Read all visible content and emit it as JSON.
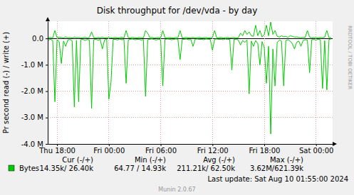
{
  "chart_data": {
    "type": "line",
    "title": "Disk throughput for /dev/vda - by day",
    "y_label": "Pr second read (-) / write (+)",
    "grid": true,
    "legend": "bottom-left",
    "xlim": [
      16.92,
      49.92
    ],
    "xticks": [
      {
        "value": 18,
        "label": "Thu 18:00"
      },
      {
        "value": 24,
        "label": "Fri 00:00"
      },
      {
        "value": 30,
        "label": "Fri 06:00"
      },
      {
        "value": 36,
        "label": "Fri 12:00"
      },
      {
        "value": 42,
        "label": "Fri 18:00"
      },
      {
        "value": 48,
        "label": "Sat 00:00"
      }
    ],
    "ylim": [
      -4000000,
      650000
    ],
    "yticks": [
      {
        "value": 0,
        "label": "0.0"
      },
      {
        "value": -1000000,
        "label": "-1.0 M"
      },
      {
        "value": -2000000,
        "label": "-2.0 M"
      },
      {
        "value": -3000000,
        "label": "-3.0 M"
      },
      {
        "value": -4000000,
        "label": "-4.0 M"
      }
    ],
    "x": [
      17,
      17.25,
      17.5,
      17.75,
      18,
      18.25,
      18.5,
      18.75,
      19,
      19.25,
      19.5,
      19.75,
      20,
      20.25,
      20.5,
      20.75,
      21,
      21.25,
      21.5,
      21.75,
      22,
      22.25,
      22.5,
      22.75,
      23,
      23.25,
      23.5,
      23.75,
      24,
      24.25,
      24.5,
      24.75,
      25,
      25.25,
      25.5,
      25.75,
      26,
      26.25,
      26.5,
      26.75,
      27,
      27.25,
      27.5,
      27.75,
      28,
      28.25,
      28.5,
      28.75,
      29,
      29.25,
      29.5,
      29.75,
      30,
      30.25,
      30.5,
      30.75,
      31,
      31.25,
      31.5,
      31.75,
      32,
      32.25,
      32.5,
      32.75,
      33,
      33.25,
      33.5,
      33.75,
      34,
      34.25,
      34.5,
      34.75,
      35,
      35.25,
      35.5,
      35.75,
      36,
      36.25,
      36.5,
      36.75,
      37,
      37.25,
      37.5,
      37.75,
      38,
      38.25,
      38.5,
      38.75,
      39,
      39.25,
      39.5,
      39.75,
      40,
      40.25,
      40.5,
      40.75,
      41,
      41.25,
      41.5,
      41.75,
      42,
      42.25,
      42.5,
      42.75,
      43,
      43.25,
      43.5,
      43.75,
      44,
      44.25,
      44.5,
      44.75,
      45,
      45.25,
      45.5,
      45.75,
      46,
      46.25,
      46.5,
      46.75,
      47,
      47.25,
      47.5,
      47.75,
      48,
      48.25,
      48.5,
      48.75,
      49,
      49.25,
      49.5,
      49.75
    ],
    "series": [
      {
        "name": "Bytes",
        "color": "#00cc00",
        "stats": [
          "14.35k/ 26.40k",
          "64.77 / 14.93k",
          "211.21k/ 62.50k",
          "3.62M/621.39k"
        ],
        "values": [
          30000,
          40000,
          20000,
          300000,
          30000,
          50000,
          40000,
          20000,
          60000,
          30000,
          40000,
          20000,
          50000,
          30000,
          40000,
          20000,
          30000,
          50000,
          20000,
          40000,
          250000,
          30000,
          20000,
          40000,
          30000,
          50000,
          20000,
          30000,
          40000,
          20000,
          30000,
          40000,
          20000,
          30000,
          50000,
          20000,
          300000,
          30000,
          20000,
          40000,
          30000,
          20000,
          40000,
          30000,
          20000,
          300000,
          200000,
          30000,
          40000,
          20000,
          30000,
          40000,
          20000,
          300000,
          30000,
          20000,
          40000,
          30000,
          20000,
          40000,
          30000,
          300000,
          20000,
          30000,
          40000,
          20000,
          30000,
          40000,
          20000,
          30000,
          40000,
          20000,
          30000,
          40000,
          20000,
          30000,
          40000,
          300000,
          20000,
          30000,
          40000,
          20000,
          30000,
          40000,
          20000,
          30000,
          40000,
          20000,
          30000,
          200000,
          100000,
          300000,
          150000,
          250000,
          100000,
          80000,
          500000,
          100000,
          300000,
          50000,
          150000,
          500000,
          100000,
          621390,
          150000,
          300000,
          80000,
          50000,
          100000,
          60000,
          80000,
          40000,
          100000,
          80000,
          50000,
          60000,
          40000,
          30000,
          50000,
          40000,
          300000,
          50000,
          30000,
          40000,
          20000,
          30000,
          40000,
          30000,
          50000,
          300000,
          30000,
          26400
        ]
      },
      {
        "color": "#00cc00",
        "values": [
          -60000,
          -30000,
          -80000,
          -2400000,
          -50000,
          -120000,
          -950000,
          -100000,
          -300000,
          -60000,
          -40000,
          -90000,
          -2600000,
          -70000,
          -2400000,
          -50000,
          -30000,
          -80000,
          -40000,
          -60000,
          -2650000,
          -50000,
          -30000,
          -70000,
          -40000,
          -400000,
          -60000,
          -30000,
          -2300000,
          -1650000,
          -40000,
          -30000,
          -60000,
          -20000,
          -50000,
          -40000,
          -1700000,
          -60000,
          -30000,
          -20000,
          -50000,
          -40000,
          -30000,
          -60000,
          -40000,
          -2200000,
          -50000,
          -30000,
          -20000,
          -40000,
          -60000,
          -30000,
          -50000,
          -1800000,
          -40000,
          -20000,
          -30000,
          -50000,
          -40000,
          -20000,
          -30000,
          -800000,
          -40000,
          -30000,
          -20000,
          -50000,
          -40000,
          -300000,
          -30000,
          -20000,
          -40000,
          -30000,
          -50000,
          -20000,
          -30000,
          -40000,
          -450000,
          -30000,
          -20000,
          -40000,
          -30000,
          -50000,
          -20000,
          -40000,
          -30000,
          -1200000,
          -40000,
          -30000,
          -60000,
          -250000,
          -80000,
          -150000,
          -60000,
          -2100000,
          -100000,
          -300000,
          -80000,
          -200000,
          -1000000,
          -120000,
          -350000,
          -1700000,
          -300000,
          -3620000,
          -400000,
          -1800000,
          -150000,
          -60000,
          -100000,
          -1800000,
          -80000,
          -50000,
          -100000,
          -200000,
          -400000,
          -150000,
          -100000,
          -300000,
          -80000,
          -50000,
          -60000,
          -1300000,
          -50000,
          -40000,
          -60000,
          -30000,
          -50000,
          -1900000,
          -80000,
          -1950000,
          -40000,
          -14350
        ]
      }
    ],
    "stats_headers": [
      "Cur (-/+)",
      "Min (-/+)",
      "Avg (-/+)",
      "Max (-/+)"
    ],
    "last_update": "Last update: Sat Aug 10 01:55:00 2024",
    "footer": "Munin 2.0.67",
    "watermark": "RRDTOOL / TOBI OETIKER"
  }
}
